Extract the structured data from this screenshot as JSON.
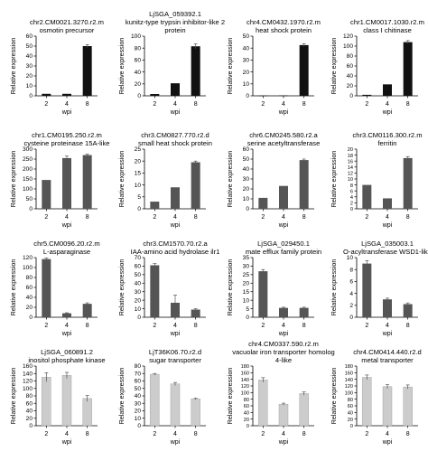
{
  "colors": {
    "black": "#111111",
    "dark_gray": "#555555",
    "light_gray": "#cccccc",
    "axis": "#000000"
  },
  "chart_data": [
    {
      "type": "bar",
      "title": [
        "chr2.CM0021.3270.r2.m",
        "osmotin precursor"
      ],
      "ylabel": "Relative expression",
      "xlabel": "wpi",
      "categories": [
        "2",
        "4",
        "8"
      ],
      "values": [
        2,
        2,
        50
      ],
      "errors": [
        0,
        0,
        1.5
      ],
      "ylim": [
        0,
        60
      ],
      "yticks": [
        0,
        10,
        20,
        30,
        40,
        50,
        60
      ],
      "color": "black"
    },
    {
      "type": "bar",
      "title": [
        "LjSGA_059392.1",
        "kunitz-type trypsin inhibitor-like 2",
        "protein"
      ],
      "ylabel": "Relative expression",
      "xlabel": "wpi",
      "categories": [
        "2",
        "4",
        "8"
      ],
      "values": [
        3,
        21,
        83
      ],
      "errors": [
        0,
        0,
        4
      ],
      "ylim": [
        0,
        100
      ],
      "yticks": [
        0,
        20,
        40,
        60,
        80,
        100
      ],
      "color": "black"
    },
    {
      "type": "bar",
      "title": [
        "chr4.CM0432.1970.r2.m",
        "heat shock protein"
      ],
      "ylabel": "Relative expression",
      "xlabel": "wpi",
      "categories": [
        "2",
        "4",
        "8"
      ],
      "values": [
        0.2,
        0.3,
        42.5
      ],
      "errors": [
        0,
        0,
        1.2
      ],
      "ylim": [
        0,
        50
      ],
      "yticks": [
        0,
        10,
        20,
        30,
        40,
        50
      ],
      "color": "black"
    },
    {
      "type": "bar",
      "title": [
        "chr1.CM0017.1030.r2.m",
        "class I chitinase"
      ],
      "ylabel": "Relative expression",
      "xlabel": "wpi",
      "categories": [
        "2",
        "4",
        "8"
      ],
      "values": [
        2,
        23,
        108
      ],
      "errors": [
        0,
        0,
        3
      ],
      "ylim": [
        0,
        120
      ],
      "yticks": [
        0,
        20,
        40,
        60,
        80,
        100,
        120
      ],
      "color": "black"
    },
    {
      "type": "bar",
      "title": [
        "chr1.CM0195.250.r2.m",
        "cysteine proteinase 15A-like"
      ],
      "ylabel": "Relative expression",
      "xlabel": "wpi",
      "categories": [
        "2",
        "4",
        "8"
      ],
      "values": [
        145,
        255,
        270
      ],
      "errors": [
        0,
        10,
        5
      ],
      "ylim": [
        0,
        300
      ],
      "yticks": [
        0,
        50,
        100,
        150,
        200,
        250,
        300
      ],
      "color": "dark"
    },
    {
      "type": "bar",
      "title": [
        "chr3.CM0827.770.r2.d",
        "small heat shock protein"
      ],
      "ylabel": "Relative expression",
      "xlabel": "wpi",
      "categories": [
        "2",
        "4",
        "8"
      ],
      "values": [
        3,
        9,
        19.5
      ],
      "errors": [
        0,
        0,
        0.5
      ],
      "ylim": [
        0,
        25
      ],
      "yticks": [
        0,
        5,
        10,
        15,
        20,
        25
      ],
      "color": "dark"
    },
    {
      "type": "bar",
      "title": [
        "chr6.CM0245.580.r2.a",
        "serine acetyltransferase"
      ],
      "ylabel": "Relative expression",
      "xlabel": "wpi",
      "categories": [
        "2",
        "4",
        "8"
      ],
      "values": [
        11,
        23,
        49
      ],
      "errors": [
        0,
        0,
        1
      ],
      "ylim": [
        0,
        60
      ],
      "yticks": [
        0,
        10,
        20,
        30,
        40,
        50,
        60
      ],
      "color": "dark"
    },
    {
      "type": "bar",
      "title": [
        "chr3.CM0116.300.r2.m",
        "ferritin"
      ],
      "ylabel": "Relative expression",
      "xlabel": "wpi",
      "categories": [
        "2",
        "4",
        "8"
      ],
      "values": [
        8,
        3.5,
        17
      ],
      "errors": [
        0,
        0,
        0.5
      ],
      "ylim": [
        0,
        20
      ],
      "yticks": [
        0,
        2,
        4,
        6,
        8,
        10,
        12,
        14,
        16,
        18,
        20
      ],
      "color": "dark"
    },
    {
      "type": "bar",
      "title": [
        "chr5.CM0096.20.r2.m",
        "L-asparaginase"
      ],
      "ylabel": "Relative expression",
      "xlabel": "wpi",
      "categories": [
        "2",
        "4",
        "8"
      ],
      "values": [
        117,
        8,
        27
      ],
      "errors": [
        2,
        1,
        2
      ],
      "ylim": [
        0,
        120
      ],
      "yticks": [
        0,
        20,
        40,
        60,
        80,
        100,
        120
      ],
      "color": "dark"
    },
    {
      "type": "bar",
      "title": [
        "chr3.CM1570.70.r2.a",
        "IAA-amino acid hydrolase ilr1"
      ],
      "ylabel": "Relative expression",
      "xlabel": "wpi",
      "categories": [
        "2",
        "4",
        "8"
      ],
      "values": [
        61,
        17,
        9
      ],
      "errors": [
        2,
        9,
        1
      ],
      "ylim": [
        0,
        70
      ],
      "yticks": [
        0,
        10,
        20,
        30,
        40,
        50,
        60,
        70
      ],
      "color": "dark"
    },
    {
      "type": "bar",
      "title": [
        "LjSGA_029450.1",
        "mate efflux family protein"
      ],
      "ylabel": "Relative expression",
      "xlabel": "wpi",
      "categories": [
        "2",
        "4",
        "8"
      ],
      "values": [
        27,
        5.5,
        5.5
      ],
      "errors": [
        1,
        0.4,
        0.4
      ],
      "ylim": [
        0,
        35
      ],
      "yticks": [
        0,
        5,
        10,
        15,
        20,
        25,
        30,
        35
      ],
      "color": "dark"
    },
    {
      "type": "bar",
      "title": [
        "LjSGA_035003.1",
        "O-acyltransferase WSD1-like"
      ],
      "ylabel": "Relative expression",
      "xlabel": "wpi",
      "categories": [
        "2",
        "4",
        "8"
      ],
      "values": [
        9,
        3,
        2.2
      ],
      "errors": [
        0.5,
        0.2,
        0.2
      ],
      "ylim": [
        0,
        10
      ],
      "yticks": [
        0,
        2,
        4,
        6,
        8,
        10
      ],
      "color": "dark"
    },
    {
      "type": "bar",
      "title": [
        "LjSGA_060891.2",
        "inositol phosphate kinase"
      ],
      "ylabel": "Relative expression",
      "xlabel": "wpi",
      "categories": [
        "2",
        "4",
        "8"
      ],
      "values": [
        130,
        135,
        73
      ],
      "errors": [
        12,
        8,
        8
      ],
      "ylim": [
        0,
        160
      ],
      "yticks": [
        0,
        20,
        40,
        60,
        80,
        100,
        120,
        140,
        160
      ],
      "color": "light"
    },
    {
      "type": "bar",
      "title": [
        "LjT36K06.70.r2.d",
        "sugar transporter"
      ],
      "ylabel": "Relative expression",
      "xlabel": "wpi",
      "categories": [
        "2",
        "4",
        "8"
      ],
      "values": [
        69,
        56,
        36
      ],
      "errors": [
        1,
        2,
        1
      ],
      "ylim": [
        0,
        80
      ],
      "yticks": [
        0,
        10,
        20,
        30,
        40,
        50,
        60,
        70,
        80
      ],
      "color": "light"
    },
    {
      "type": "bar",
      "title": [
        "chr4.CM0337.590.r2.m",
        "vacuolar iron transporter homolog",
        "4-like"
      ],
      "ylabel": "Relative expression",
      "xlabel": "wpi",
      "categories": [
        "2",
        "4",
        "8"
      ],
      "values": [
        138,
        65,
        97
      ],
      "errors": [
        7,
        3,
        5
      ],
      "ylim": [
        0,
        180
      ],
      "yticks": [
        0,
        20,
        40,
        60,
        80,
        100,
        120,
        140,
        160,
        180
      ],
      "color": "light"
    },
    {
      "type": "bar",
      "title": [
        "chr4.CM0414.440.r2.d",
        "metal transporter"
      ],
      "ylabel": "Relative expression",
      "xlabel": "wpi",
      "categories": [
        "2",
        "4",
        "8"
      ],
      "values": [
        146,
        118,
        117
      ],
      "errors": [
        7,
        6,
        6
      ],
      "ylim": [
        0,
        180
      ],
      "yticks": [
        0,
        20,
        40,
        60,
        80,
        100,
        120,
        140,
        160,
        180
      ],
      "color": "light"
    }
  ]
}
